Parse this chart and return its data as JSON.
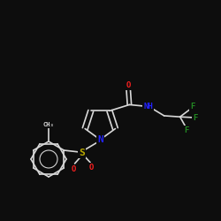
{
  "background_color": "#0d0d0d",
  "bond_color": "#d8d8d8",
  "bond_width": 1.2,
  "atom_colors": {
    "N": "#2222ff",
    "O": "#ff2020",
    "S": "#bbaa00",
    "F": "#228822",
    "C": "#d8d8d8"
  },
  "font_size": 6.5,
  "figsize": [
    2.5,
    2.5
  ],
  "dpi": 100
}
